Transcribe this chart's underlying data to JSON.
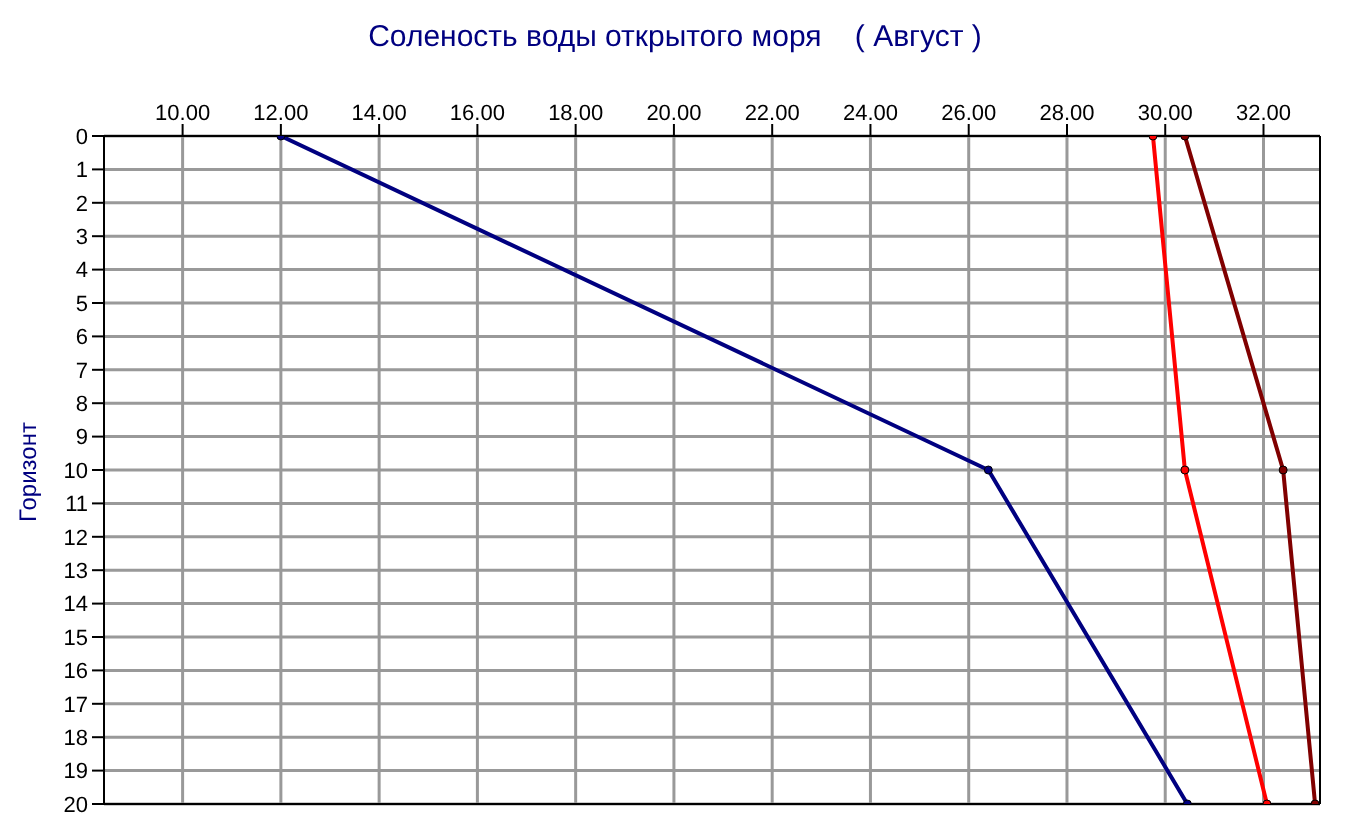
{
  "chart_data": {
    "type": "line",
    "title": "Соленость воды открытого моря    ( Август )",
    "ylabel": "Горизонт",
    "xlim": [
      8.4,
      33.15
    ],
    "xticks": [
      {
        "value": 10,
        "label": "10.00"
      },
      {
        "value": 12,
        "label": "12.00"
      },
      {
        "value": 14,
        "label": "14.00"
      },
      {
        "value": 16,
        "label": "16.00"
      },
      {
        "value": 18,
        "label": "18.00"
      },
      {
        "value": 20,
        "label": "20.00"
      },
      {
        "value": 22,
        "label": "22.00"
      },
      {
        "value": 24,
        "label": "24.00"
      },
      {
        "value": 26,
        "label": "26.00"
      },
      {
        "value": 28,
        "label": "28.00"
      },
      {
        "value": 30,
        "label": "30.00"
      },
      {
        "value": 32,
        "label": "32.00"
      }
    ],
    "ylim": [
      20,
      0
    ],
    "yticks": [
      0,
      1,
      2,
      3,
      4,
      5,
      6,
      7,
      8,
      9,
      10,
      11,
      12,
      13,
      14,
      15,
      16,
      17,
      18,
      19,
      20
    ],
    "grid": true,
    "marker": "circle",
    "line_style": "solid",
    "series": [
      {
        "color": "#000080",
        "x": [
          12.0,
          26.4,
          30.45
        ],
        "values": [
          0,
          10,
          20
        ]
      },
      {
        "color": "#ff0000",
        "x": [
          29.75,
          30.4,
          32.07
        ],
        "values": [
          0,
          10,
          20
        ]
      },
      {
        "color": "#800000",
        "x": [
          30.4,
          32.4,
          33.05
        ],
        "values": [
          0,
          10,
          20
        ]
      }
    ]
  }
}
